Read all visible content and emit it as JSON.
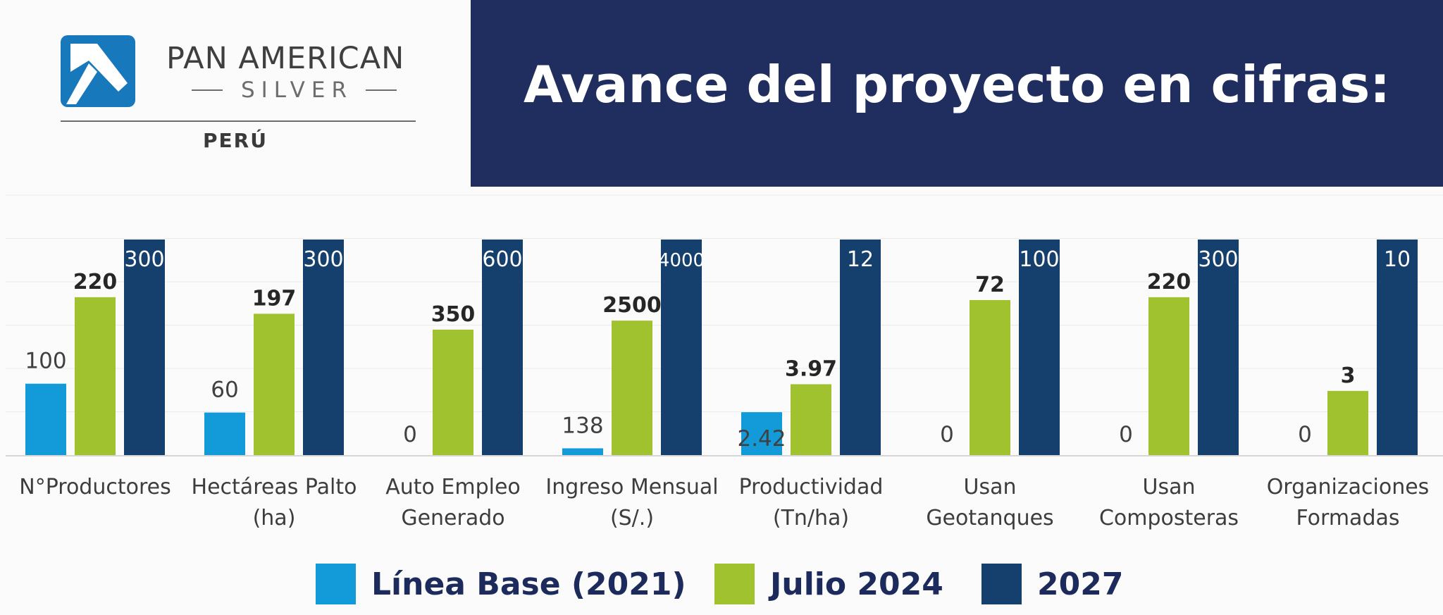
{
  "logo": {
    "name": "PAN AMERICAN",
    "sub": "SILVER",
    "country": "PERÚ"
  },
  "header": {
    "title": "Avance del proyecto en cifras:"
  },
  "colors": {
    "base": "#139bd9",
    "julio": "#a0c22f",
    "target": "#153f6c",
    "banner": "#1f2e5f"
  },
  "chart_data": {
    "type": "bar",
    "title": "Avance del proyecto en cifras:",
    "categories": [
      [
        "N°Productores"
      ],
      [
        "Hectáreas Palto",
        "(ha)"
      ],
      [
        "Auto Empleo",
        "Generado"
      ],
      [
        "Ingreso Mensual",
        "(S/.)"
      ],
      [
        "Productividad",
        "(Tn/ha)"
      ],
      [
        "Usan",
        "Geotanques"
      ],
      [
        "Usan",
        "Composteras"
      ],
      [
        "Organizaciones",
        "Formadas"
      ]
    ],
    "series": [
      {
        "name": "Línea Base (2021)",
        "color": "#139bd9",
        "values": [
          100,
          60,
          0,
          138,
          2.42,
          0,
          0,
          0
        ],
        "labels": [
          "100",
          "60",
          "0",
          "138",
          "2.42",
          "0",
          "0",
          "0"
        ]
      },
      {
        "name": "Julio 2024",
        "color": "#a0c22f",
        "values": [
          220,
          197,
          350,
          2500,
          3.97,
          72,
          220,
          3
        ],
        "labels": [
          "220",
          "197",
          "350",
          "2500",
          "3.97",
          "72",
          "220",
          "3"
        ]
      },
      {
        "name": "2027",
        "color": "#153f6c",
        "values": [
          300,
          300,
          600,
          4000,
          12,
          100,
          300,
          10
        ],
        "labels": [
          "300",
          "300",
          "600",
          "4000",
          "12",
          "100",
          "300",
          "10"
        ]
      }
    ],
    "normalization": "each category scaled to its 2027 target = full height",
    "xlabel": "",
    "ylabel": "",
    "legend": "bottom",
    "grid": true
  }
}
